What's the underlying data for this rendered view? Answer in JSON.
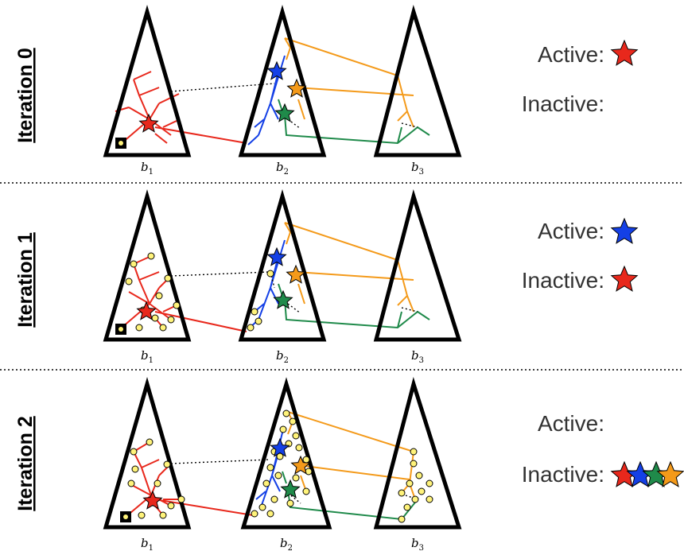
{
  "colors": {
    "red": "#e8281c",
    "blue": "#1440e6",
    "orange": "#f49a1a",
    "green": "#1f8a4a",
    "node_fill": "#fff37a"
  },
  "rows": [
    {
      "iteration_label": "Iteration 0",
      "active_label": "Active:",
      "inactive_label": "Inactive:",
      "active_stars": [
        "red"
      ],
      "inactive_stars": []
    },
    {
      "iteration_label": "Iteration 1",
      "active_label": "Active:",
      "inactive_label": "Inactive:",
      "active_stars": [
        "blue"
      ],
      "inactive_stars": [
        "red"
      ]
    },
    {
      "iteration_label": "Iteration 2",
      "active_label": "Active:",
      "inactive_label": "Inactive:",
      "active_stars": [],
      "inactive_stars": [
        "red",
        "blue",
        "green",
        "orange"
      ]
    }
  ],
  "trees": [
    {
      "label": "b",
      "sub": "1"
    },
    {
      "label": "b",
      "sub": "2"
    },
    {
      "label": "b",
      "sub": "3"
    }
  ]
}
